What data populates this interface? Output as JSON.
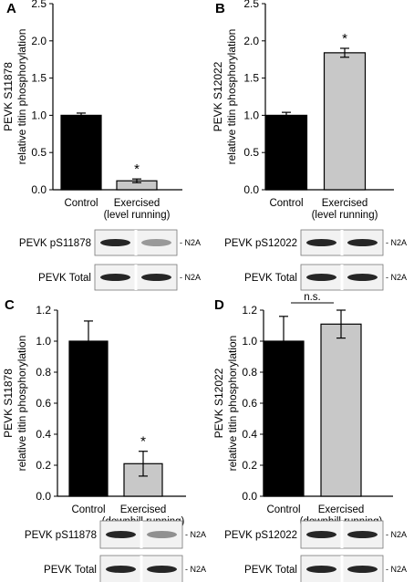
{
  "chart_data": [
    {
      "type": "bar",
      "panel": "A",
      "ylabel_line1": "PEVK S11878",
      "ylabel_line2": "relative titin phosphorylation",
      "categories": [
        "Control",
        "Exercised"
      ],
      "category_sublabels": [
        "",
        "(level running)"
      ],
      "values": [
        1.0,
        0.12
      ],
      "errors": [
        0.03,
        0.025
      ],
      "bar_colors": [
        "#000000",
        "#c8c8c8"
      ],
      "ylim": [
        0,
        2.5
      ],
      "yticks": [
        "0.0",
        "0.5",
        "1.0",
        "1.5",
        "2.0",
        "2.5"
      ],
      "annotation": "*",
      "blots": [
        {
          "label": "PEVK pS11878",
          "tag": "- N2A"
        },
        {
          "label": "PEVK Total",
          "tag": "- N2A"
        }
      ]
    },
    {
      "type": "bar",
      "panel": "B",
      "ylabel_line1": "PEVK S12022",
      "ylabel_line2": "relative titin phosphorylation",
      "categories": [
        "Control",
        "Exercised"
      ],
      "category_sublabels": [
        "",
        "(level running)"
      ],
      "values": [
        1.0,
        1.84
      ],
      "errors": [
        0.04,
        0.06
      ],
      "bar_colors": [
        "#000000",
        "#c8c8c8"
      ],
      "ylim": [
        0,
        2.5
      ],
      "yticks": [
        "0.0",
        "0.5",
        "1.0",
        "1.5",
        "2.0",
        "2.5"
      ],
      "annotation": "*",
      "blots": [
        {
          "label": "PEVK pS12022",
          "tag": "- N2A"
        },
        {
          "label": "PEVK Total",
          "tag": "- N2A"
        }
      ]
    },
    {
      "type": "bar",
      "panel": "C",
      "ylabel_line1": "PEVK S11878",
      "ylabel_line2": "relative titin phosphorylation",
      "categories": [
        "Control",
        "Exercised"
      ],
      "category_sublabels": [
        "",
        "(downhill running)"
      ],
      "values": [
        1.0,
        0.21
      ],
      "errors": [
        0.13,
        0.08
      ],
      "bar_colors": [
        "#000000",
        "#c8c8c8"
      ],
      "ylim": [
        0,
        1.2
      ],
      "yticks": [
        "0.0",
        "0.2",
        "0.4",
        "0.6",
        "0.8",
        "1.0",
        "1.2"
      ],
      "annotation": "*",
      "blots": [
        {
          "label": "PEVK pS11878",
          "tag": "- N2A"
        },
        {
          "label": "PEVK Total",
          "tag": "- N2A"
        }
      ]
    },
    {
      "type": "bar",
      "panel": "D",
      "ylabel_line1": "PEVK S12022",
      "ylabel_line2": "relative titin phosphorylation",
      "categories": [
        "Control",
        "Exercised"
      ],
      "category_sublabels": [
        "",
        "(downhill running)"
      ],
      "values": [
        1.0,
        1.11
      ],
      "errors": [
        0.16,
        0.09
      ],
      "bar_colors": [
        "#000000",
        "#c8c8c8"
      ],
      "ylim": [
        0,
        1.2
      ],
      "yticks": [
        "0.0",
        "0.2",
        "0.4",
        "0.6",
        "0.8",
        "1.0",
        "1.2"
      ],
      "annotation": "n.s.",
      "blots": [
        {
          "label": "PEVK pS12022",
          "tag": "- N2A"
        },
        {
          "label": "PEVK Total",
          "tag": "- N2A"
        }
      ]
    }
  ]
}
